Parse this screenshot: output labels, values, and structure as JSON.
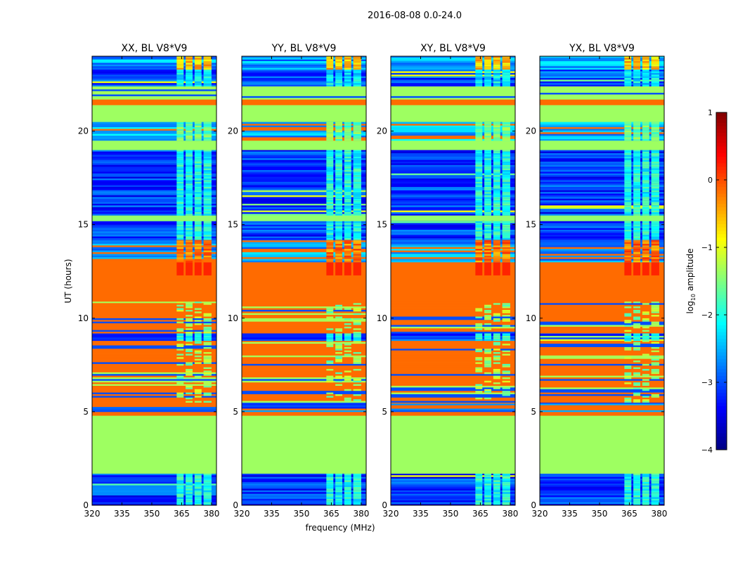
{
  "chart_data": {
    "type": "heatmap",
    "title": "2016-08-08 0.0-24.0",
    "xlabel": "frequency (MHz)",
    "ylabel": "UT (hours)",
    "xlim": [
      320,
      382.5
    ],
    "ylim": [
      0,
      24
    ],
    "xticks": [
      320,
      335,
      350,
      365,
      380
    ],
    "yticks": [
      0,
      5,
      10,
      15,
      20
    ],
    "panels": [
      {
        "title": "XX, BL V8*V9"
      },
      {
        "title": "YY, BL V8*V9"
      },
      {
        "title": "XY, BL V8*V9"
      },
      {
        "title": "YX, BL V8*V9"
      }
    ],
    "colorbar": {
      "label_prefix": "log",
      "label_sub": "10",
      "label_suffix": " amplitude",
      "colormap": "jet",
      "range": [
        -4,
        1
      ],
      "ticks": [
        "1",
        "0",
        "−1",
        "−2",
        "−3",
        "−4"
      ],
      "tick_values": [
        1,
        0,
        -1,
        -2,
        -3,
        -4
      ]
    },
    "bands": [
      {
        "t0": 0.0,
        "t1": 1.7,
        "kind": "noise",
        "v": -3.1,
        "rfi": -2.0
      },
      {
        "t0": 1.7,
        "t1": 4.8,
        "kind": "solid",
        "v": -1.35
      },
      {
        "t0": 4.8,
        "t1": 5.0,
        "kind": "solid",
        "v": -0.15
      },
      {
        "t0": 5.0,
        "t1": 5.5,
        "kind": "mixed",
        "v": -2.8
      },
      {
        "t0": 5.5,
        "t1": 8.8,
        "kind": "stripe",
        "v": -0.15,
        "rfi": -1.4
      },
      {
        "t0": 8.8,
        "t1": 9.2,
        "kind": "noise",
        "v": -3.0,
        "rfi": -2.0
      },
      {
        "t0": 9.2,
        "t1": 10.9,
        "kind": "stripe",
        "v": -0.15,
        "rfi": -1.4
      },
      {
        "t0": 10.9,
        "t1": 12.3,
        "kind": "solid",
        "v": -0.15
      },
      {
        "t0": 12.3,
        "t1": 13.0,
        "kind": "solid",
        "v": -0.15,
        "rfi": 0.2
      },
      {
        "t0": 13.0,
        "t1": 14.2,
        "kind": "mixed",
        "v": -2.6,
        "rfi": -0.2
      },
      {
        "t0": 14.2,
        "t1": 15.2,
        "kind": "noise",
        "v": -3.1,
        "rfi": -2.0
      },
      {
        "t0": 15.2,
        "t1": 15.5,
        "kind": "solid",
        "v": -1.4
      },
      {
        "t0": 15.5,
        "t1": 19.0,
        "kind": "noise",
        "v": -3.1,
        "rfi": -2.0
      },
      {
        "t0": 19.0,
        "t1": 19.5,
        "kind": "solid",
        "v": -1.35
      },
      {
        "t0": 19.5,
        "t1": 20.5,
        "kind": "mixed",
        "v": -2.5,
        "rfi": -1.6
      },
      {
        "t0": 20.5,
        "t1": 21.4,
        "kind": "solid",
        "v": -1.35
      },
      {
        "t0": 21.4,
        "t1": 21.7,
        "kind": "solid",
        "v": -0.15
      },
      {
        "t0": 21.7,
        "t1": 22.4,
        "kind": "stripe",
        "v": -1.35
      },
      {
        "t0": 22.4,
        "t1": 23.3,
        "kind": "noise",
        "v": -3.0,
        "rfi": -2.2
      },
      {
        "t0": 23.3,
        "t1": 24.0,
        "kind": "noise",
        "v": -2.6,
        "rfi": -0.6
      }
    ],
    "rfi_channels": [
      [
        362.5,
        366
      ],
      [
        367,
        370.5
      ],
      [
        371.5,
        375
      ],
      [
        376,
        380
      ]
    ]
  }
}
